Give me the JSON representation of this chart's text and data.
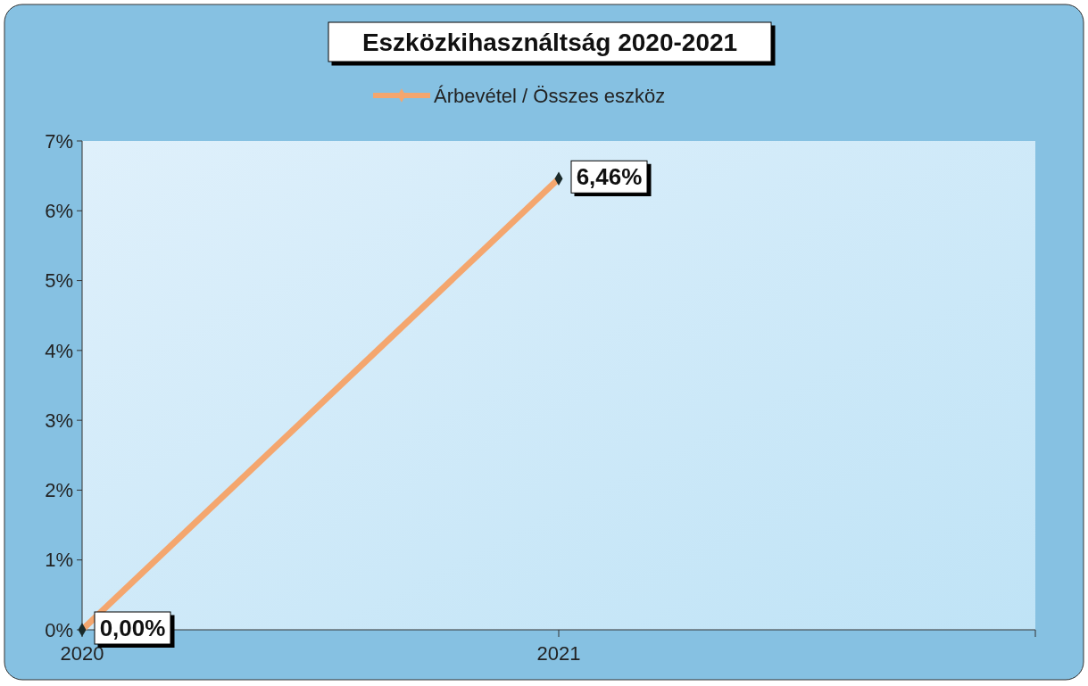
{
  "chart_data": {
    "type": "line",
    "title": "Eszközkihasználtság 2020-2021",
    "categories": [
      "2020",
      "2021",
      null
    ],
    "series": [
      {
        "name": "Árbevétel / Összes eszköz",
        "color": "#f4a66e",
        "values": [
          0,
          6.46,
          null
        ],
        "value_labels": [
          "0,00%",
          "6,46%",
          null
        ]
      }
    ],
    "ylim": [
      0,
      7
    ],
    "yticks": [
      {
        "value": 0,
        "label": "0%"
      },
      {
        "value": 1,
        "label": "1%"
      },
      {
        "value": 2,
        "label": "2%"
      },
      {
        "value": 3,
        "label": "3%"
      },
      {
        "value": 4,
        "label": "4%"
      },
      {
        "value": 5,
        "label": "5%"
      },
      {
        "value": 6,
        "label": "6%"
      },
      {
        "value": 7,
        "label": "7%"
      }
    ],
    "grid": false,
    "legend": "top",
    "marker": "diamond",
    "line_style": "solid"
  }
}
